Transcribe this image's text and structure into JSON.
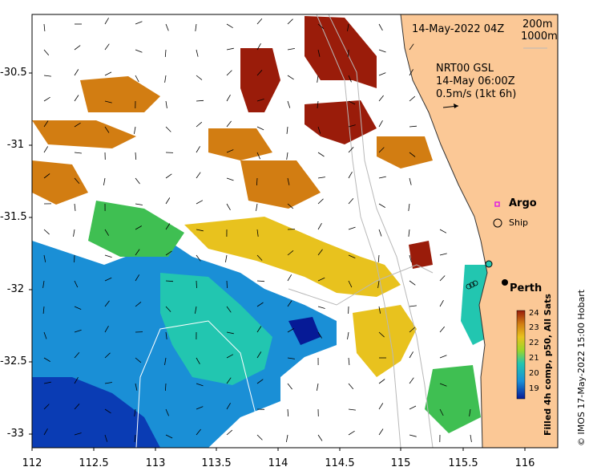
{
  "title": "14-May-2022 04Z",
  "depth_contours": [
    "200m",
    "1000m"
  ],
  "current_info": {
    "model": "NRT00 GSL",
    "time": "14-May 06:00Z",
    "scale": "0.5m/s (1kt 6h)"
  },
  "legend": {
    "argo": "Argo",
    "ship": "Ship"
  },
  "city": "Perth",
  "colorbar": {
    "label": "Filled 4h comp, p50, All Sats",
    "ticks": [
      "24",
      "23",
      "22",
      "21",
      "20",
      "19"
    ]
  },
  "credit": "© IMOS 17-May-2022 15:00 Hobart",
  "axes": {
    "lat_ticks": [
      "-30.5",
      "-31",
      "-31.5",
      "-32",
      "-32.5",
      "-33"
    ],
    "lon_ticks": [
      "112",
      "112.5",
      "113",
      "113.5",
      "114",
      "114.5",
      "115",
      "115.5",
      "116"
    ]
  },
  "colors": {
    "land": "#fbc896",
    "sst_19": "#061a96",
    "sst_20": "#1a8fd6",
    "sst_21": "#9bd62a",
    "sst_22": "#e8c21e",
    "sst_23": "#d27d12",
    "sst_24": "#9a1c0a"
  }
}
